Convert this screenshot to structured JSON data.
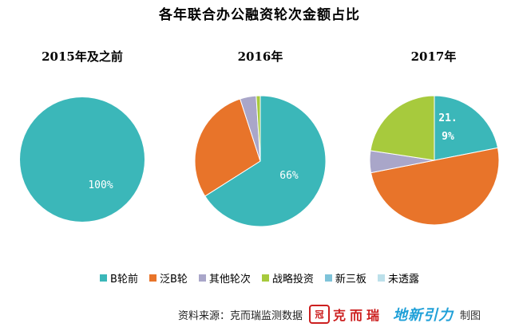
{
  "title": "各年联合办公融资轮次金额占比",
  "legend": [
    {
      "label": "B轮前",
      "color": "#3BB7B9"
    },
    {
      "label": "泛B轮",
      "color": "#E8742A"
    },
    {
      "label": "其他轮次",
      "color": "#A9A6C9"
    },
    {
      "label": "战略投资",
      "color": "#A7CA3D"
    },
    {
      "label": "新三板",
      "color": "#7EC3D9"
    },
    {
      "label": "未透露",
      "color": "#BCE0EA"
    }
  ],
  "chart_data": [
    {
      "type": "pie",
      "title": "2015年及之前",
      "slices": [
        {
          "name": "B轮前",
          "value": 100,
          "label": "100%"
        }
      ]
    },
    {
      "type": "pie",
      "title": "2016年",
      "slices": [
        {
          "name": "B轮前",
          "value": 66,
          "label": "66%"
        },
        {
          "name": "泛B轮",
          "value": 29
        },
        {
          "name": "其他轮次",
          "value": 4
        },
        {
          "name": "战略投资",
          "value": 1
        }
      ]
    },
    {
      "type": "pie",
      "title": "2017年",
      "slices": [
        {
          "name": "B轮前",
          "value": 21.9,
          "label": "21.\n9%"
        },
        {
          "name": "泛B轮",
          "value": 50
        },
        {
          "name": "其他轮次",
          "value": 5.5
        },
        {
          "name": "战略投资",
          "value": 22.6
        }
      ]
    }
  ],
  "footer": {
    "source": "资料来源：克而瑞监测数据",
    "seal": "冠",
    "brand": "克而瑞",
    "brand2": "地新引力",
    "credit": "制图"
  }
}
